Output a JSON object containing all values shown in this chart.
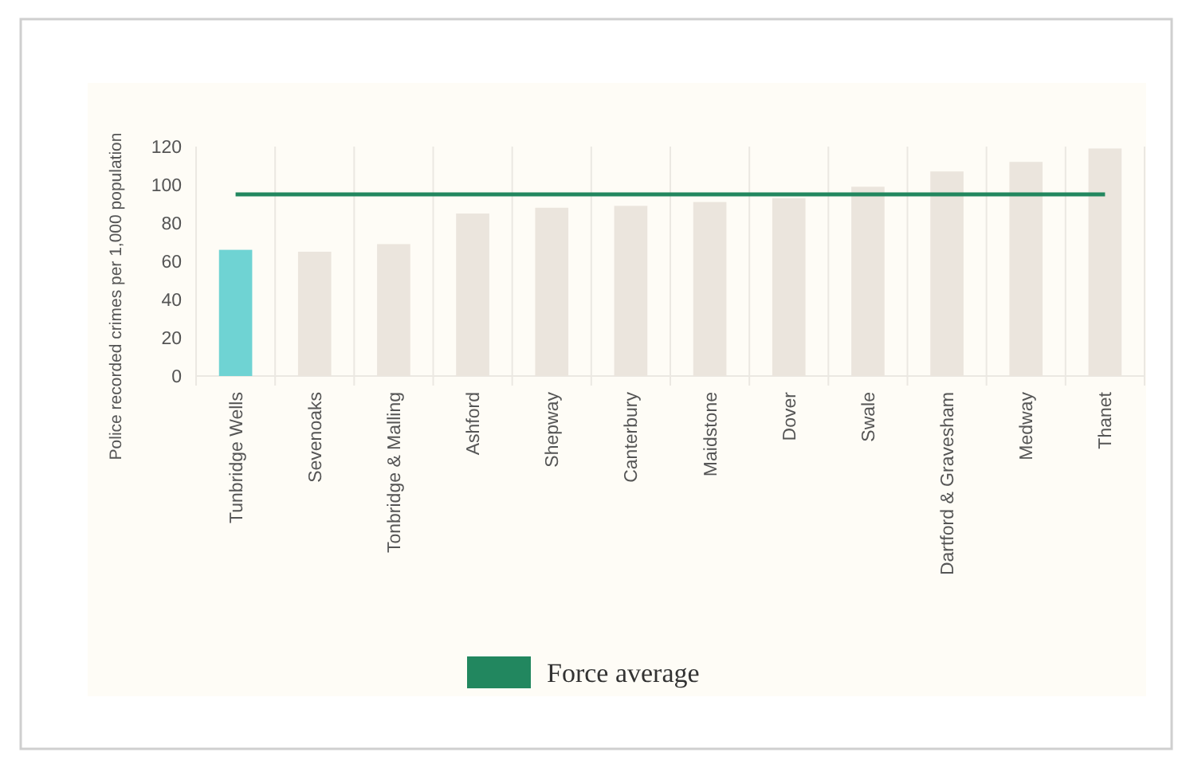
{
  "chart_data": {
    "type": "bar",
    "ylabel": "Police recorded crimes per 1,000 population",
    "categories": [
      "Tunbridge Wells",
      "Sevenoaks",
      "Tonbridge & Malling",
      "Ashford",
      "Shepway",
      "Canterbury",
      "Maidstone",
      "Dover",
      "Swale",
      "Dartford & Gravesham",
      "Medway",
      "Thanet"
    ],
    "series": [
      {
        "values": [
          66,
          65,
          69,
          85,
          88,
          89,
          91,
          93,
          99,
          107,
          112,
          119
        ],
        "colors": [
          "#6fd3d3",
          "#ebe5dd",
          "#ebe5dd",
          "#ebe5dd",
          "#ebe5dd",
          "#ebe5dd",
          "#ebe5dd",
          "#ebe5dd",
          "#ebe5dd",
          "#ebe5dd",
          "#ebe5dd",
          "#ebe5dd"
        ]
      },
      {
        "type": "line",
        "name": "Force average",
        "color": "#22875f",
        "values": [
          95,
          95,
          95,
          95,
          95,
          95,
          95,
          95,
          95,
          95,
          95,
          95
        ]
      }
    ],
    "ylim": [
      0,
      120
    ],
    "yticks": [
      0,
      20,
      40,
      60,
      80,
      100,
      120
    ],
    "grid": "x",
    "legend": "bottom",
    "marker": "none"
  }
}
